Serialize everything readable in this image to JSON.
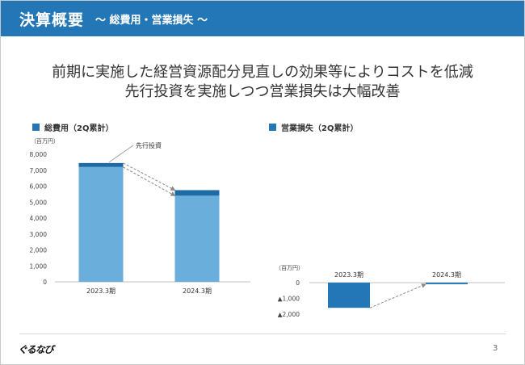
{
  "header": {
    "title": "決算概要",
    "subtitle": "～ 総費用・営業損失 ～"
  },
  "headline": {
    "line1": "前期に実施した経営資源配分見直しの効果等によりコストを低減",
    "line2": "先行投資を実施しつつ営業損失は大幅改善"
  },
  "footer": {
    "logo": "ぐるなび",
    "page": "3"
  },
  "colors": {
    "brand": "#2377b7",
    "bar_light": "#6aafdb",
    "bar_dark": "#1e6aa5",
    "connector": "#888888"
  },
  "chart_data": [
    {
      "type": "bar",
      "title": "総費用（2Q累計）",
      "unit": "（百万円）",
      "categories": [
        "2023.3期",
        "2024.3期"
      ],
      "series": [
        {
          "values": [
            7200,
            5400
          ]
        },
        {
          "name": "先行投資",
          "values": [
            250,
            350
          ]
        }
      ],
      "stacked": true,
      "annotation": "先行投資",
      "ylim": [
        0,
        8000
      ],
      "yticks": [
        0,
        1000,
        2000,
        3000,
        4000,
        5000,
        6000,
        7000,
        8000
      ],
      "yticklabels": [
        "0",
        "1,000",
        "2,000",
        "3,000",
        "4,000",
        "5,000",
        "6,000",
        "7,000",
        "8,000"
      ]
    },
    {
      "type": "bar",
      "title": "営業損失（2Q累計）",
      "unit": "（百万円）",
      "categories": [
        "2023.3期",
        "2024.3期"
      ],
      "values": [
        -1600,
        -100
      ],
      "ylim": [
        -2000,
        0
      ],
      "yticks": [
        0,
        -1000,
        -2000
      ],
      "yticklabels": [
        "0",
        "▲1,000",
        "▲2,000"
      ]
    }
  ]
}
